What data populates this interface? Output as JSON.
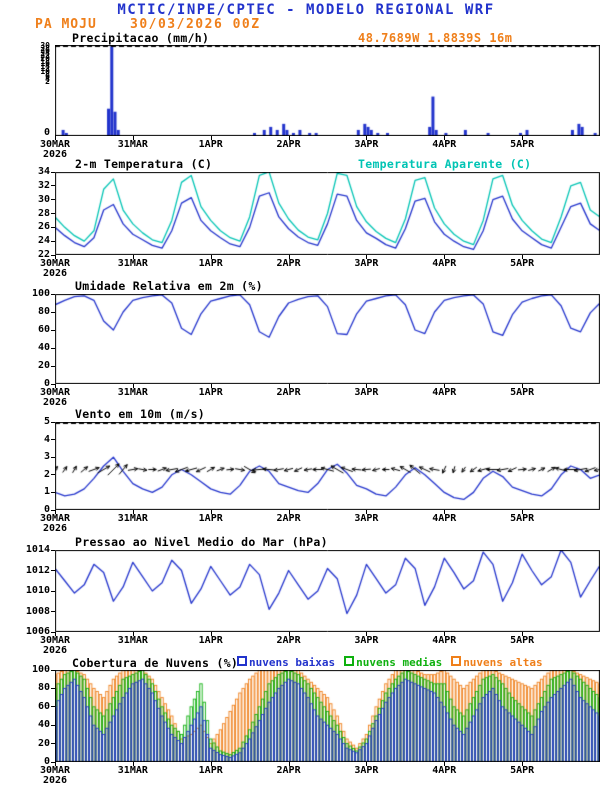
{
  "header": {
    "title": "MCTIC/INPE/CPTEC - MODELO REGIONAL WRF",
    "station": "PA MOJU",
    "run": "30/03/2026 00Z",
    "location": "48.7689W 1.8839S 16m"
  },
  "colors": {
    "header_blue": "#2233cc",
    "accent_orange": "#ef7f1a",
    "line_blue": "#2233cc",
    "cyan": "#00c4b4",
    "green": "#0eb00e",
    "black": "#000000"
  },
  "time": {
    "step_hours": 3,
    "total_hours": 168
  },
  "x_axis": {
    "tick_labels": [
      "30MAR",
      "31MAR",
      "1APR",
      "2APR",
      "3APR",
      "4APR",
      "5APR"
    ],
    "tick_hours": [
      0,
      24,
      48,
      72,
      96,
      120,
      144
    ],
    "year_label": "2026"
  },
  "chart_data": [
    {
      "id": "precipitation",
      "type": "bar",
      "title": "Precipitacao (mm/h)",
      "ylabel": "mm/h",
      "ylim": [
        0,
        30
      ],
      "yticks": [
        0,
        2,
        4,
        6,
        8,
        10,
        12,
        14,
        16,
        18,
        20,
        22,
        24,
        26,
        28,
        30
      ],
      "color": "#2233cc",
      "top_dashed": true,
      "events": [
        [
          2,
          2
        ],
        [
          3,
          1
        ],
        [
          16,
          9
        ],
        [
          17,
          30
        ],
        [
          18,
          8
        ],
        [
          19,
          2
        ],
        [
          61,
          1
        ],
        [
          64,
          2
        ],
        [
          66,
          3
        ],
        [
          68,
          2
        ],
        [
          70,
          4
        ],
        [
          71,
          2
        ],
        [
          73,
          1
        ],
        [
          75,
          2
        ],
        [
          78,
          1
        ],
        [
          80,
          1
        ],
        [
          93,
          2
        ],
        [
          95,
          4
        ],
        [
          96,
          3
        ],
        [
          97,
          2
        ],
        [
          99,
          1
        ],
        [
          102,
          1
        ],
        [
          115,
          3
        ],
        [
          116,
          13
        ],
        [
          117,
          2
        ],
        [
          120,
          1
        ],
        [
          126,
          2
        ],
        [
          133,
          1
        ],
        [
          143,
          1
        ],
        [
          145,
          2
        ],
        [
          159,
          2
        ],
        [
          161,
          4
        ],
        [
          162,
          3
        ],
        [
          166,
          1
        ]
      ]
    },
    {
      "id": "temperature",
      "type": "line",
      "title": "2-m Temperatura (C)",
      "ylim": [
        22,
        34
      ],
      "yticks": [
        22,
        24,
        26,
        28,
        30,
        32,
        34
      ],
      "series": [
        {
          "name": "2-m Temperatura (C)",
          "color": "#2233cc",
          "values": [
            26.0,
            24.8,
            23.8,
            23.2,
            24.5,
            28.5,
            29.3,
            26.5,
            25.0,
            24.2,
            23.4,
            23.0,
            25.5,
            29.5,
            30.3,
            27.0,
            25.5,
            24.5,
            23.6,
            23.2,
            26.0,
            30.5,
            31.0,
            27.5,
            25.8,
            24.6,
            23.8,
            23.4,
            26.5,
            30.8,
            30.5,
            27.0,
            25.2,
            24.4,
            23.5,
            23.0,
            25.8,
            29.8,
            30.2,
            26.8,
            25.0,
            24.0,
            23.2,
            22.8,
            25.5,
            30.0,
            30.5,
            27.2,
            25.5,
            24.5,
            23.5,
            23.0,
            26.0,
            29.0,
            29.5,
            26.5,
            25.5
          ]
        },
        {
          "name": "Temperatura Aparente (C)",
          "color": "#00c4b4",
          "values": [
            27.5,
            26.0,
            24.8,
            24.0,
            25.5,
            31.5,
            33.0,
            28.5,
            26.5,
            25.2,
            24.2,
            23.8,
            27.0,
            32.5,
            33.5,
            29.0,
            27.0,
            25.5,
            24.5,
            24.0,
            27.5,
            33.5,
            34.0,
            29.5,
            27.2,
            25.6,
            24.6,
            24.2,
            28.0,
            33.8,
            33.5,
            29.0,
            26.8,
            25.4,
            24.4,
            23.8,
            27.2,
            32.8,
            33.2,
            28.8,
            26.5,
            25.0,
            24.0,
            23.5,
            27.0,
            33.0,
            33.5,
            29.2,
            27.0,
            25.5,
            24.3,
            23.8,
            27.5,
            32.0,
            32.5,
            28.5,
            27.5
          ]
        }
      ]
    },
    {
      "id": "humidity",
      "type": "line",
      "title": "Umidade Relativa em 2m (%)",
      "ylim": [
        0,
        100
      ],
      "yticks": [
        0,
        20,
        40,
        60,
        80,
        100
      ],
      "series": [
        {
          "name": "Umidade Relativa 2m",
          "color": "#2233cc",
          "values": [
            88,
            93,
            97,
            98,
            93,
            70,
            60,
            80,
            93,
            96,
            98,
            99,
            90,
            62,
            55,
            78,
            92,
            95,
            98,
            99,
            88,
            58,
            52,
            75,
            90,
            94,
            97,
            98,
            86,
            56,
            55,
            78,
            92,
            95,
            98,
            99,
            88,
            60,
            56,
            80,
            93,
            96,
            98,
            99,
            89,
            58,
            54,
            77,
            91,
            95,
            98,
            99,
            87,
            62,
            58,
            79,
            90
          ]
        }
      ]
    },
    {
      "id": "wind",
      "type": "line",
      "title": "Vento em 10m (m/s)",
      "ylim": [
        0,
        5
      ],
      "yticks": [
        0,
        1,
        2,
        3,
        4,
        5
      ],
      "top_dashed": true,
      "series": [
        {
          "name": "Vento 10m",
          "color": "#2233cc",
          "values": [
            1.0,
            0.8,
            0.9,
            1.2,
            1.8,
            2.5,
            3.0,
            2.2,
            1.5,
            1.2,
            1.0,
            1.3,
            2.0,
            2.3,
            2.0,
            1.6,
            1.2,
            1.0,
            0.9,
            1.4,
            2.2,
            2.5,
            2.2,
            1.5,
            1.3,
            1.1,
            1.0,
            1.5,
            2.3,
            2.6,
            2.1,
            1.4,
            1.2,
            0.9,
            0.8,
            1.3,
            2.0,
            2.4,
            2.0,
            1.5,
            1.0,
            0.7,
            0.6,
            1.0,
            1.8,
            2.2,
            1.9,
            1.3,
            1.1,
            0.9,
            0.8,
            1.2,
            2.0,
            2.5,
            2.3,
            1.8,
            2.0
          ]
        }
      ],
      "arrows": {
        "color": "#000000",
        "anchor_value": 2.3,
        "directions_deg": [
          40,
          35,
          30,
          50,
          70,
          60,
          45,
          40,
          80,
          100,
          90,
          70,
          260,
          250,
          255,
          245,
          60,
          70,
          85,
          100,
          120,
          265,
          275,
          260,
          255,
          245,
          260,
          270,
          285,
          300,
          290,
          275,
          265,
          255,
          270,
          285,
          300,
          310,
          295,
          280,
          205,
          195,
          215,
          235,
          255,
          270,
          260,
          245,
          85,
          75,
          65,
          60,
          285,
          270,
          260,
          250,
          260
        ]
      }
    },
    {
      "id": "pressure",
      "type": "line",
      "title": "Pressao ao Nivel Medio do Mar (hPa)",
      "ylim": [
        1006,
        1014
      ],
      "yticks": [
        1006,
        1008,
        1010,
        1012,
        1014
      ],
      "series": [
        {
          "name": "Pressao ao Nivel Medio do Mar",
          "color": "#2233cc",
          "values": [
            1012.2,
            1011.0,
            1009.8,
            1010.6,
            1012.6,
            1011.8,
            1009.0,
            1010.4,
            1012.8,
            1011.4,
            1010.0,
            1010.8,
            1013.0,
            1012.0,
            1008.8,
            1010.2,
            1012.4,
            1011.0,
            1009.6,
            1010.4,
            1012.6,
            1011.6,
            1008.2,
            1009.8,
            1012.0,
            1010.6,
            1009.2,
            1010.0,
            1012.2,
            1011.2,
            1007.8,
            1009.6,
            1012.6,
            1011.2,
            1009.8,
            1010.6,
            1013.2,
            1012.2,
            1008.6,
            1010.4,
            1013.2,
            1011.8,
            1010.2,
            1011.0,
            1013.8,
            1012.6,
            1009.0,
            1010.8,
            1013.6,
            1012.0,
            1010.6,
            1011.4,
            1014.0,
            1012.8,
            1009.4,
            1011.0,
            1012.5
          ]
        }
      ]
    },
    {
      "id": "clouds",
      "type": "bar",
      "title": "Cobertura de Nuvens (%)",
      "ylim": [
        0,
        100
      ],
      "yticks": [
        0,
        20,
        40,
        60,
        80,
        100
      ],
      "series": [
        {
          "name": "nuvens baixas",
          "color": "#2233cc",
          "values": [
            60,
            80,
            90,
            70,
            40,
            30,
            50,
            70,
            85,
            90,
            75,
            50,
            30,
            20,
            40,
            60,
            15,
            8,
            5,
            10,
            25,
            45,
            65,
            80,
            90,
            85,
            70,
            50,
            40,
            30,
            15,
            10,
            20,
            45,
            65,
            80,
            90,
            85,
            80,
            75,
            60,
            40,
            30,
            50,
            70,
            80,
            60,
            50,
            40,
            30,
            55,
            70,
            80,
            90,
            70,
            60,
            50
          ]
        },
        {
          "name": "nuvens medias",
          "color": "#0eb00e",
          "values": [
            80,
            95,
            100,
            90,
            60,
            50,
            70,
            90,
            95,
            100,
            85,
            60,
            40,
            30,
            60,
            85,
            25,
            12,
            8,
            15,
            35,
            60,
            85,
            95,
            100,
            95,
            85,
            70,
            55,
            40,
            20,
            12,
            25,
            50,
            75,
            90,
            100,
            95,
            90,
            85,
            85,
            60,
            50,
            70,
            90,
            95,
            85,
            70,
            60,
            50,
            70,
            90,
            95,
            100,
            90,
            80,
            70
          ]
        },
        {
          "name": "nuvens altas",
          "color": "#ef7f1a",
          "values": [
            95,
            100,
            100,
            95,
            80,
            70,
            90,
            100,
            100,
            100,
            90,
            70,
            50,
            25,
            30,
            40,
            20,
            35,
            55,
            75,
            90,
            100,
            100,
            100,
            100,
            100,
            90,
            80,
            70,
            50,
            25,
            15,
            30,
            60,
            85,
            100,
            100,
            100,
            95,
            95,
            100,
            90,
            80,
            90,
            100,
            100,
            95,
            90,
            85,
            80,
            90,
            100,
            100,
            100,
            95,
            90,
            85
          ]
        }
      ]
    }
  ]
}
